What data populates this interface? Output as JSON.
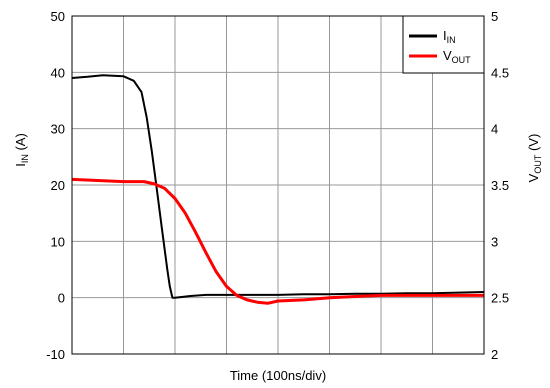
{
  "chart_data": {
    "type": "line",
    "xlabel": "Time (100ns/div)",
    "x_divisions": 8,
    "ylabel_left": {
      "base": "I",
      "sub": "IN",
      "unit": " (A)"
    },
    "ylabel_right": {
      "base": "V",
      "sub": "OUT",
      "unit": " (V)"
    },
    "ylim_left": [
      -10,
      50
    ],
    "ylim_right": [
      2,
      5
    ],
    "left_ticks": [
      "-10",
      "0",
      "10",
      "20",
      "30",
      "40",
      "50"
    ],
    "right_ticks": [
      "2",
      "2.5",
      "3",
      "3.5",
      "4",
      "4.5",
      "5"
    ],
    "grid": true,
    "legend_position": "top-right",
    "series": [
      {
        "name_base": "I",
        "name_sub": "IN",
        "axis": "left",
        "color": "#000000",
        "x": [
          0,
          0.3,
          0.6,
          1.0,
          1.2,
          1.35,
          1.45,
          1.55,
          1.65,
          1.75,
          1.85,
          1.9,
          1.95,
          2.0,
          2.3,
          2.6,
          3.0,
          3.5,
          4.0,
          4.5,
          5.0,
          5.5,
          6.0,
          6.5,
          7.0,
          7.5,
          8.0
        ],
        "values": [
          39,
          39.2,
          39.5,
          39.3,
          38.5,
          36.5,
          32,
          26,
          19,
          12,
          5,
          2,
          0,
          0,
          0.3,
          0.5,
          0.5,
          0.5,
          0.5,
          0.6,
          0.6,
          0.7,
          0.7,
          0.8,
          0.8,
          0.9,
          1.0
        ]
      },
      {
        "name_base": "V",
        "name_sub": "OUT",
        "axis": "right",
        "color": "#ff0000",
        "x": [
          0,
          0.5,
          1.0,
          1.4,
          1.6,
          1.8,
          2.0,
          2.2,
          2.4,
          2.6,
          2.8,
          3.0,
          3.2,
          3.4,
          3.6,
          3.8,
          4.0,
          4.5,
          5.0,
          5.5,
          6.0,
          6.5,
          7.0,
          7.5,
          8.0
        ],
        "values": [
          3.55,
          3.54,
          3.53,
          3.53,
          3.51,
          3.47,
          3.38,
          3.25,
          3.08,
          2.9,
          2.73,
          2.6,
          2.52,
          2.48,
          2.46,
          2.45,
          2.47,
          2.48,
          2.5,
          2.51,
          2.52,
          2.52,
          2.52,
          2.52,
          2.52
        ]
      }
    ]
  }
}
